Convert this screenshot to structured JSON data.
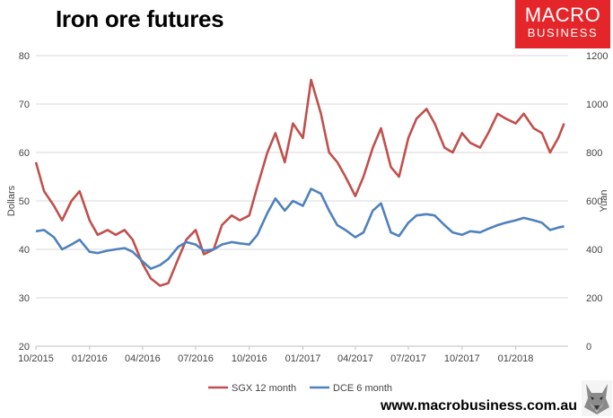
{
  "header": {
    "title": "Iron ore futures"
  },
  "logo": {
    "line1": "MACRO",
    "line2": "BUSINESS",
    "color": "#e4262a"
  },
  "footer": {
    "url": "www.macrobusiness.com.au"
  },
  "chart_data": {
    "type": "line",
    "title": "Iron ore futures",
    "ylabel_left": "Dollars",
    "ylabel_right": "Yuan",
    "ylim_left": [
      20,
      80
    ],
    "ylim_right": [
      0,
      1200
    ],
    "yticks_left": [
      "20",
      "30",
      "40",
      "50",
      "60",
      "70",
      "80"
    ],
    "yticks_right": [
      "0",
      "200",
      "400",
      "600",
      "800",
      "1000",
      "1200"
    ],
    "xlim": [
      "2015-10-01",
      "2018-04-01"
    ],
    "xticks": [
      "10/2015",
      "01/2016",
      "04/2016",
      "07/2016",
      "10/2016",
      "01/2017",
      "04/2017",
      "07/2017",
      "10/2017",
      "01/2018"
    ],
    "grid": "horizontal",
    "legend": "bottom",
    "series": [
      {
        "name": "SGX 12 month",
        "axis": "left",
        "color": "#c0504d",
        "points": [
          [
            "2015-10-01",
            58
          ],
          [
            "2015-10-15",
            52
          ],
          [
            "2015-11-01",
            49
          ],
          [
            "2015-11-15",
            46
          ],
          [
            "2015-12-01",
            50
          ],
          [
            "2015-12-15",
            52
          ],
          [
            "2016-01-01",
            46
          ],
          [
            "2016-01-15",
            43
          ],
          [
            "2016-02-01",
            44
          ],
          [
            "2016-02-15",
            43
          ],
          [
            "2016-03-01",
            44
          ],
          [
            "2016-03-15",
            42
          ],
          [
            "2016-04-01",
            37
          ],
          [
            "2016-04-15",
            34
          ],
          [
            "2016-05-01",
            32.5
          ],
          [
            "2016-05-15",
            33
          ],
          [
            "2016-06-01",
            38
          ],
          [
            "2016-06-15",
            42
          ],
          [
            "2016-07-01",
            44
          ],
          [
            "2016-07-15",
            39
          ],
          [
            "2016-08-01",
            40
          ],
          [
            "2016-08-15",
            45
          ],
          [
            "2016-09-01",
            47
          ],
          [
            "2016-09-15",
            46
          ],
          [
            "2016-10-01",
            47
          ],
          [
            "2016-10-15",
            53
          ],
          [
            "2016-11-01",
            60
          ],
          [
            "2016-11-15",
            64
          ],
          [
            "2016-12-01",
            58
          ],
          [
            "2016-12-15",
            66
          ],
          [
            "2017-01-01",
            63
          ],
          [
            "2017-01-15",
            75
          ],
          [
            "2017-02-01",
            68
          ],
          [
            "2017-02-15",
            60
          ],
          [
            "2017-03-01",
            58
          ],
          [
            "2017-03-15",
            55
          ],
          [
            "2017-04-01",
            51
          ],
          [
            "2017-04-15",
            55
          ],
          [
            "2017-05-01",
            61
          ],
          [
            "2017-05-15",
            65
          ],
          [
            "2017-06-01",
            57
          ],
          [
            "2017-06-15",
            55
          ],
          [
            "2017-07-01",
            63
          ],
          [
            "2017-07-15",
            67
          ],
          [
            "2017-08-01",
            69
          ],
          [
            "2017-08-15",
            66
          ],
          [
            "2017-09-01",
            61
          ],
          [
            "2017-09-15",
            60
          ],
          [
            "2017-10-01",
            64
          ],
          [
            "2017-10-15",
            62
          ],
          [
            "2017-11-01",
            61
          ],
          [
            "2017-11-15",
            64
          ],
          [
            "2017-12-01",
            68
          ],
          [
            "2017-12-15",
            67
          ],
          [
            "2018-01-01",
            66
          ],
          [
            "2018-01-15",
            68
          ],
          [
            "2018-02-01",
            65
          ],
          [
            "2018-02-15",
            64
          ],
          [
            "2018-03-01",
            60
          ],
          [
            "2018-03-15",
            63
          ],
          [
            "2018-03-25",
            66
          ]
        ]
      },
      {
        "name": "DCE 6 month",
        "axis": "right",
        "color": "#4f81bd",
        "points": [
          [
            "2015-10-01",
            475
          ],
          [
            "2015-10-15",
            480
          ],
          [
            "2015-11-01",
            450
          ],
          [
            "2015-11-15",
            400
          ],
          [
            "2015-12-01",
            420
          ],
          [
            "2015-12-15",
            440
          ],
          [
            "2016-01-01",
            390
          ],
          [
            "2016-01-15",
            385
          ],
          [
            "2016-02-01",
            395
          ],
          [
            "2016-02-15",
            400
          ],
          [
            "2016-03-01",
            405
          ],
          [
            "2016-03-15",
            390
          ],
          [
            "2016-04-01",
            350
          ],
          [
            "2016-04-15",
            320
          ],
          [
            "2016-05-01",
            335
          ],
          [
            "2016-05-15",
            360
          ],
          [
            "2016-06-01",
            410
          ],
          [
            "2016-06-15",
            430
          ],
          [
            "2016-07-01",
            420
          ],
          [
            "2016-07-15",
            395
          ],
          [
            "2016-08-01",
            400
          ],
          [
            "2016-08-15",
            420
          ],
          [
            "2016-09-01",
            430
          ],
          [
            "2016-09-15",
            425
          ],
          [
            "2016-10-01",
            420
          ],
          [
            "2016-10-15",
            460
          ],
          [
            "2016-11-01",
            550
          ],
          [
            "2016-11-15",
            610
          ],
          [
            "2016-12-01",
            560
          ],
          [
            "2016-12-15",
            600
          ],
          [
            "2017-01-01",
            580
          ],
          [
            "2017-01-15",
            650
          ],
          [
            "2017-02-01",
            630
          ],
          [
            "2017-02-15",
            560
          ],
          [
            "2017-03-01",
            500
          ],
          [
            "2017-03-15",
            480
          ],
          [
            "2017-04-01",
            450
          ],
          [
            "2017-04-15",
            470
          ],
          [
            "2017-05-01",
            560
          ],
          [
            "2017-05-15",
            590
          ],
          [
            "2017-06-01",
            470
          ],
          [
            "2017-06-15",
            455
          ],
          [
            "2017-07-01",
            510
          ],
          [
            "2017-07-15",
            540
          ],
          [
            "2017-08-01",
            545
          ],
          [
            "2017-08-15",
            540
          ],
          [
            "2017-09-01",
            500
          ],
          [
            "2017-09-15",
            470
          ],
          [
            "2017-10-01",
            460
          ],
          [
            "2017-10-15",
            475
          ],
          [
            "2017-11-01",
            470
          ],
          [
            "2017-11-15",
            485
          ],
          [
            "2017-12-01",
            500
          ],
          [
            "2017-12-15",
            510
          ],
          [
            "2018-01-01",
            520
          ],
          [
            "2018-01-15",
            530
          ],
          [
            "2018-02-01",
            520
          ],
          [
            "2018-02-15",
            510
          ],
          [
            "2018-03-01",
            480
          ],
          [
            "2018-03-15",
            490
          ],
          [
            "2018-03-25",
            495
          ]
        ]
      }
    ]
  }
}
